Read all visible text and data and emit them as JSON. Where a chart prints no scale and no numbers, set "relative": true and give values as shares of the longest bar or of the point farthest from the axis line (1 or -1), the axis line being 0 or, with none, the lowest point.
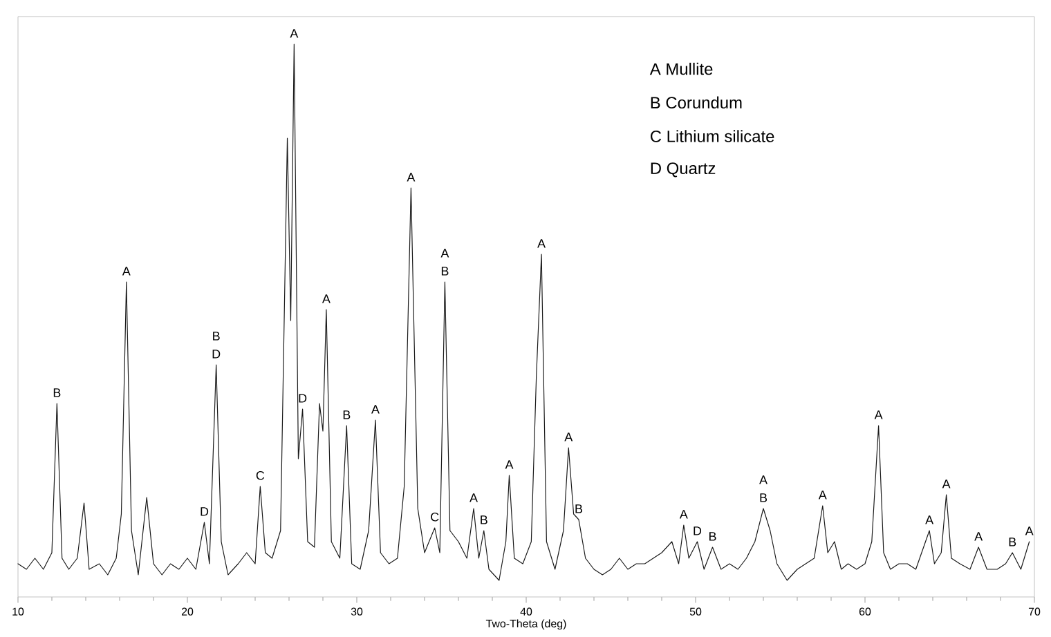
{
  "chart_data": {
    "type": "line",
    "relative": true,
    "xlabel": "Two-Theta (deg)",
    "xlim": [
      10,
      70
    ],
    "xticks": [
      10,
      20,
      30,
      40,
      50,
      60,
      70
    ],
    "x": [
      10,
      10.5,
      11,
      11.5,
      12,
      12.3,
      12.6,
      13,
      13.5,
      13.9,
      14.2,
      14.8,
      15.3,
      15.8,
      16.1,
      16.4,
      16.7,
      17.1,
      17.6,
      18,
      18.5,
      19,
      19.5,
      20,
      20.5,
      21.0,
      21.3,
      21.7,
      22.0,
      22.4,
      23,
      23.5,
      24,
      24.3,
      24.6,
      25,
      25.5,
      25.9,
      26.1,
      26.3,
      26.55,
      26.8,
      27.1,
      27.5,
      27.8,
      28.0,
      28.2,
      28.5,
      29,
      29.4,
      29.7,
      30.2,
      30.7,
      31.1,
      31.4,
      31.9,
      32.4,
      32.8,
      33.2,
      33.6,
      34,
      34.6,
      34.9,
      35.2,
      35.5,
      36,
      36.5,
      36.9,
      37.2,
      37.5,
      37.8,
      38.4,
      38.8,
      39.0,
      39.3,
      39.8,
      40.3,
      40.6,
      40.9,
      41.2,
      41.7,
      42.2,
      42.5,
      42.8,
      43.1,
      43.5,
      44,
      44.5,
      45,
      45.5,
      46,
      46.5,
      47,
      47.5,
      48,
      48.6,
      49,
      49.3,
      49.6,
      50.1,
      50.5,
      51.0,
      51.5,
      52,
      52.5,
      53,
      53.5,
      54.0,
      54.4,
      54.8,
      55.4,
      56,
      56.5,
      57,
      57.5,
      57.8,
      58.2,
      58.6,
      59,
      59.5,
      60,
      60.4,
      60.8,
      61.1,
      61.5,
      62,
      62.5,
      63,
      63.8,
      64.1,
      64.5,
      64.8,
      65.1,
      65.6,
      66.2,
      66.7,
      67.2,
      67.8,
      68.3,
      68.7,
      69.2,
      69.7
    ],
    "series": [
      {
        "color": "#1a1a1a",
        "values": [
          0.06,
          0.05,
          0.07,
          0.05,
          0.08,
          0.35,
          0.07,
          0.05,
          0.07,
          0.17,
          0.05,
          0.06,
          0.04,
          0.07,
          0.15,
          0.57,
          0.12,
          0.04,
          0.18,
          0.06,
          0.04,
          0.06,
          0.05,
          0.07,
          0.05,
          0.135,
          0.06,
          0.42,
          0.1,
          0.04,
          0.06,
          0.08,
          0.06,
          0.2,
          0.08,
          0.07,
          0.12,
          0.83,
          0.5,
          1.0,
          0.25,
          0.34,
          0.1,
          0.09,
          0.35,
          0.3,
          0.52,
          0.1,
          0.07,
          0.31,
          0.06,
          0.05,
          0.12,
          0.32,
          0.08,
          0.06,
          0.07,
          0.2,
          0.74,
          0.16,
          0.08,
          0.125,
          0.08,
          0.57,
          0.12,
          0.1,
          0.07,
          0.16,
          0.07,
          0.12,
          0.05,
          0.03,
          0.1,
          0.22,
          0.07,
          0.06,
          0.1,
          0.4,
          0.62,
          0.1,
          0.05,
          0.12,
          0.27,
          0.15,
          0.14,
          0.07,
          0.05,
          0.04,
          0.05,
          0.07,
          0.05,
          0.06,
          0.06,
          0.07,
          0.08,
          0.1,
          0.06,
          0.13,
          0.07,
          0.1,
          0.05,
          0.09,
          0.05,
          0.06,
          0.05,
          0.07,
          0.1,
          0.16,
          0.12,
          0.06,
          0.03,
          0.05,
          0.06,
          0.07,
          0.165,
          0.08,
          0.1,
          0.05,
          0.06,
          0.05,
          0.06,
          0.1,
          0.31,
          0.08,
          0.05,
          0.06,
          0.06,
          0.05,
          0.12,
          0.06,
          0.08,
          0.185,
          0.07,
          0.06,
          0.05,
          0.09,
          0.05,
          0.05,
          0.06,
          0.08,
          0.05,
          0.1
        ]
      }
    ],
    "annotations": [
      {
        "text": "B",
        "x": 12.3,
        "y": 0.35
      },
      {
        "text": "A",
        "x": 16.4,
        "y": 0.57
      },
      {
        "text": "D",
        "x": 21.0,
        "y": 0.135
      },
      {
        "text": "B",
        "x": 21.7,
        "y": 0.42
      },
      {
        "text": "D",
        "x": 21.7,
        "y": 0.42
      },
      {
        "text": "C",
        "x": 24.3,
        "y": 0.2
      },
      {
        "text": "A",
        "x": 26.3,
        "y": 1.0
      },
      {
        "text": "D",
        "x": 26.8,
        "y": 0.34
      },
      {
        "text": "A",
        "x": 28.2,
        "y": 0.52
      },
      {
        "text": "B",
        "x": 29.4,
        "y": 0.31
      },
      {
        "text": "A",
        "x": 31.1,
        "y": 0.32
      },
      {
        "text": "A",
        "x": 33.2,
        "y": 0.74
      },
      {
        "text": "C",
        "x": 34.6,
        "y": 0.125
      },
      {
        "text": "A",
        "x": 35.2,
        "y": 0.57
      },
      {
        "text": "B",
        "x": 35.2,
        "y": 0.57
      },
      {
        "text": "A",
        "x": 36.9,
        "y": 0.16
      },
      {
        "text": "B",
        "x": 37.5,
        "y": 0.12
      },
      {
        "text": "A",
        "x": 39.0,
        "y": 0.22
      },
      {
        "text": "A",
        "x": 40.9,
        "y": 0.62
      },
      {
        "text": "A",
        "x": 42.5,
        "y": 0.27
      },
      {
        "text": "B",
        "x": 43.1,
        "y": 0.14
      },
      {
        "text": "A",
        "x": 49.3,
        "y": 0.13
      },
      {
        "text": "D",
        "x": 50.1,
        "y": 0.1
      },
      {
        "text": "B",
        "x": 51.0,
        "y": 0.09
      },
      {
        "text": "A",
        "x": 54.0,
        "y": 0.16
      },
      {
        "text": "B",
        "x": 54.0,
        "y": 0.16
      },
      {
        "text": "A",
        "x": 57.5,
        "y": 0.165
      },
      {
        "text": "A",
        "x": 60.8,
        "y": 0.31
      },
      {
        "text": "A",
        "x": 63.8,
        "y": 0.12
      },
      {
        "text": "A",
        "x": 64.8,
        "y": 0.185
      },
      {
        "text": "A",
        "x": 66.7,
        "y": 0.09
      },
      {
        "text": "B",
        "x": 68.7,
        "y": 0.08
      },
      {
        "text": "A",
        "x": 69.7,
        "y": 0.1
      },
      "A  Mullite",
      "B  Corundum",
      "C  Lithium silicate",
      "D  Quartz"
    ]
  }
}
